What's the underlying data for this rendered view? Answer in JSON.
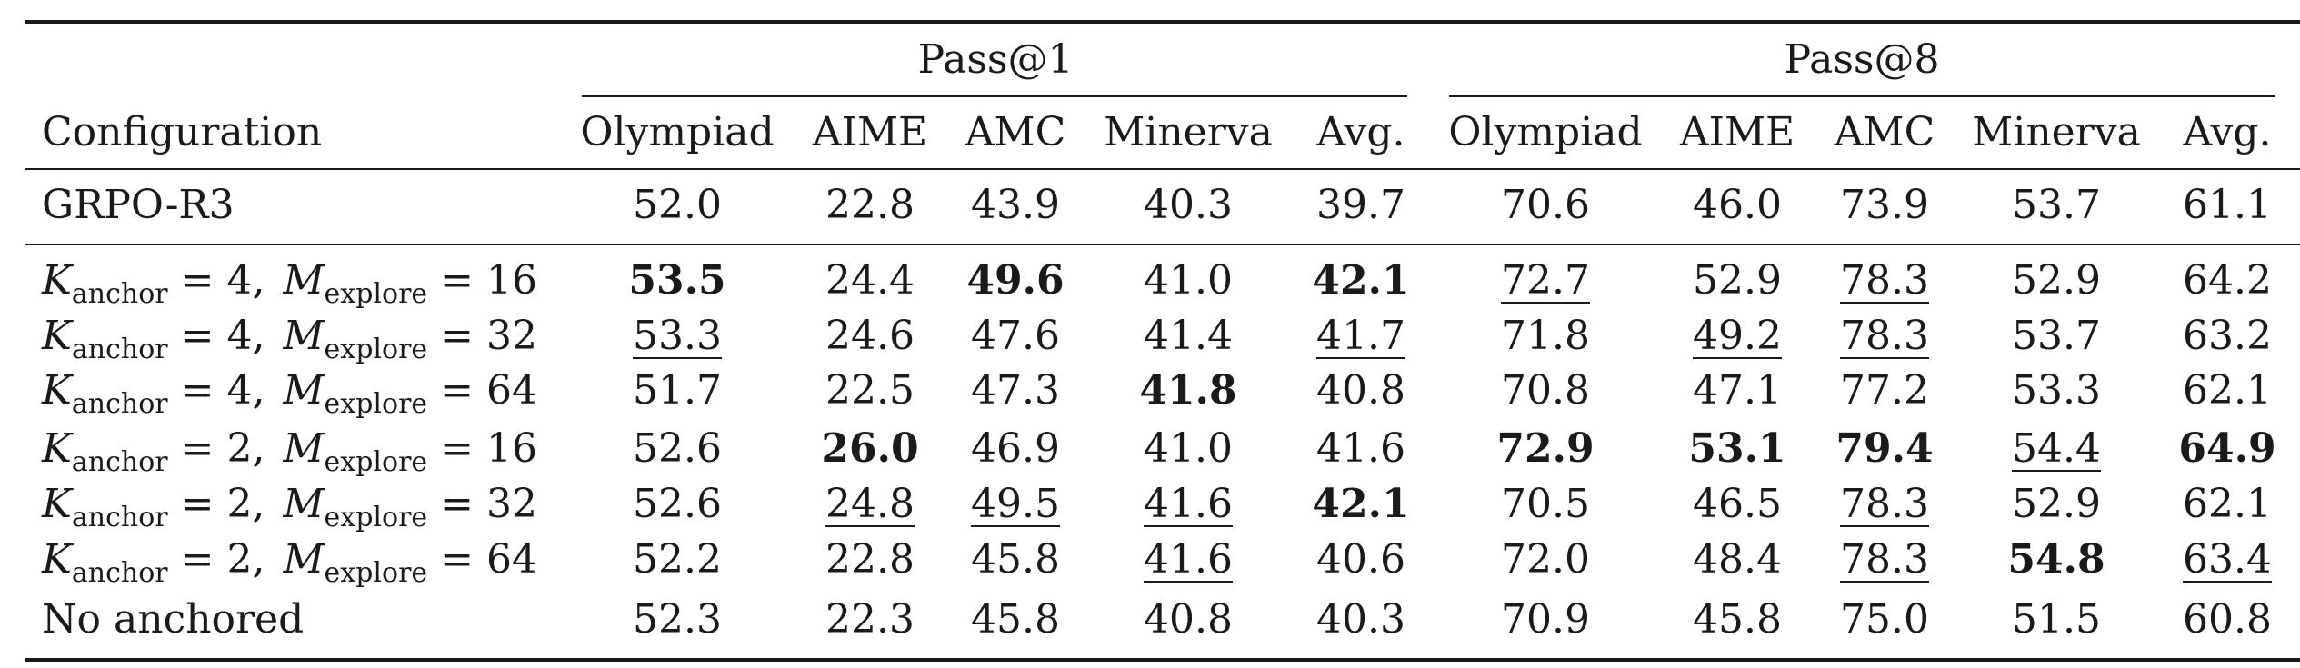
{
  "header": {
    "groups": [
      "Pass@1",
      "Pass@8"
    ],
    "config_label": "Configuration",
    "columns": [
      "Olympiad",
      "AIME",
      "AMC",
      "Minerva",
      "Avg.",
      "Olympiad",
      "AIME",
      "AMC",
      "Minerva",
      "Avg."
    ]
  },
  "rows": [
    {
      "config": {
        "text": "GRPO-R3"
      },
      "values": [
        "52.0",
        "22.8",
        "43.9",
        "40.3",
        "39.7",
        "70.6",
        "46.0",
        "73.9",
        "53.7",
        "61.1"
      ],
      "styles": [
        "",
        "",
        "",
        "",
        "",
        "",
        "",
        "",
        "",
        ""
      ]
    },
    {
      "config": {
        "k_sym": "K",
        "k_sub": "anchor",
        "k_val": "4",
        "m_sym": "M",
        "m_sub": "explore",
        "m_val": "16"
      },
      "values": [
        "53.5",
        "24.4",
        "49.6",
        "41.0",
        "42.1",
        "72.7",
        "52.9",
        "78.3",
        "52.9",
        "64.2"
      ],
      "styles": [
        "bold",
        "",
        "bold",
        "",
        "bold",
        "underline",
        "",
        "underline",
        "",
        ""
      ]
    },
    {
      "config": {
        "k_sym": "K",
        "k_sub": "anchor",
        "k_val": "4",
        "m_sym": "M",
        "m_sub": "explore",
        "m_val": "32"
      },
      "values": [
        "53.3",
        "24.6",
        "47.6",
        "41.4",
        "41.7",
        "71.8",
        "49.2",
        "78.3",
        "53.7",
        "63.2"
      ],
      "styles": [
        "underline",
        "",
        "",
        "",
        "underline",
        "",
        "underline",
        "underline",
        "",
        ""
      ]
    },
    {
      "config": {
        "k_sym": "K",
        "k_sub": "anchor",
        "k_val": "4",
        "m_sym": "M",
        "m_sub": "explore",
        "m_val": "64"
      },
      "values": [
        "51.7",
        "22.5",
        "47.3",
        "41.8",
        "40.8",
        "70.8",
        "47.1",
        "77.2",
        "53.3",
        "62.1"
      ],
      "styles": [
        "",
        "",
        "",
        "bold",
        "",
        "",
        "",
        "",
        "",
        ""
      ]
    },
    {
      "config": {
        "k_sym": "K",
        "k_sub": "anchor",
        "k_val": "2",
        "m_sym": "M",
        "m_sub": "explore",
        "m_val": "16"
      },
      "values": [
        "52.6",
        "26.0",
        "46.9",
        "41.0",
        "41.6",
        "72.9",
        "53.1",
        "79.4",
        "54.4",
        "64.9"
      ],
      "styles": [
        "",
        "bold",
        "",
        "",
        "",
        "bold",
        "bold",
        "bold",
        "underline",
        "bold"
      ]
    },
    {
      "config": {
        "k_sym": "K",
        "k_sub": "anchor",
        "k_val": "2",
        "m_sym": "M",
        "m_sub": "explore",
        "m_val": "32"
      },
      "values": [
        "52.6",
        "24.8",
        "49.5",
        "41.6",
        "42.1",
        "70.5",
        "46.5",
        "78.3",
        "52.9",
        "62.1"
      ],
      "styles": [
        "",
        "underline",
        "underline",
        "underline",
        "bold",
        "",
        "",
        "underline",
        "",
        ""
      ]
    },
    {
      "config": {
        "k_sym": "K",
        "k_sub": "anchor",
        "k_val": "2",
        "m_sym": "M",
        "m_sub": "explore",
        "m_val": "64"
      },
      "values": [
        "52.2",
        "22.8",
        "45.8",
        "41.6",
        "40.6",
        "72.0",
        "48.4",
        "78.3",
        "54.8",
        "63.4"
      ],
      "styles": [
        "",
        "",
        "",
        "underline",
        "",
        "",
        "",
        "underline",
        "bold",
        "underline"
      ]
    },
    {
      "config": {
        "text": "No anchored"
      },
      "values": [
        "52.3",
        "22.3",
        "45.8",
        "40.8",
        "40.3",
        "70.9",
        "45.8",
        "75.0",
        "51.5",
        "60.8"
      ],
      "styles": [
        "",
        "",
        "",
        "",
        "",
        "",
        "",
        "",
        "",
        ""
      ]
    }
  ]
}
